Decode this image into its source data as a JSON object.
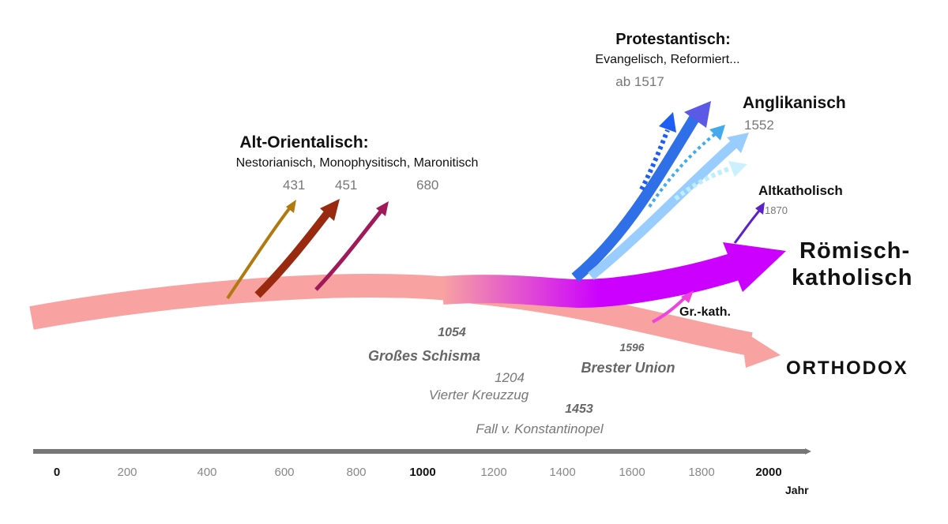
{
  "groups": {
    "protestant": {
      "title": "Protestantisch:",
      "subtitle": "Evangelisch, Reformiert...",
      "date": "ab 1517"
    },
    "anglican": {
      "title": "Anglikanisch",
      "date": "1552"
    },
    "old_catholic": {
      "title": "Altkatholisch",
      "date": "1870"
    },
    "oriental": {
      "title": "Alt-Orientalisch:",
      "subtitle": "Nestorianisch, Monophysitisch, Maronitisch",
      "dates": [
        "431",
        "451",
        "680"
      ]
    },
    "roman_catholic": {
      "line1": "Römisch-",
      "line2": "katholisch"
    },
    "greek_catholic": {
      "title": "Gr.-kath."
    },
    "orthodox": {
      "title": "ORTHODOX"
    }
  },
  "events": [
    {
      "year": "1054",
      "name": "Großes Schisma"
    },
    {
      "year": "1204",
      "name": "Vierter Kreuzzug"
    },
    {
      "year": "1453",
      "name": "Fall v. Konstantinopel"
    },
    {
      "year": "1596",
      "name": "Brester Union"
    }
  ],
  "axis": {
    "ticks": [
      "0",
      "200",
      "400",
      "600",
      "800",
      "1000",
      "1200",
      "1400",
      "1600",
      "1800",
      "2000"
    ],
    "major_ticks": [
      "0",
      "1000",
      "2000"
    ],
    "unit": "Jahr"
  },
  "colors": {
    "early_church": "#f8a2a2",
    "orthodox": "#f8a2a2",
    "catholic": "#cc00ff",
    "protestant": "#2f6fe8",
    "anglican": "#99ccff",
    "old_catholic": "#5a22c8",
    "greek_catholic": "#ee44dd",
    "nestorian": "#b07a10",
    "monophysite": "#992a10",
    "maronite": "#a01a5a",
    "axis": "#777777"
  }
}
